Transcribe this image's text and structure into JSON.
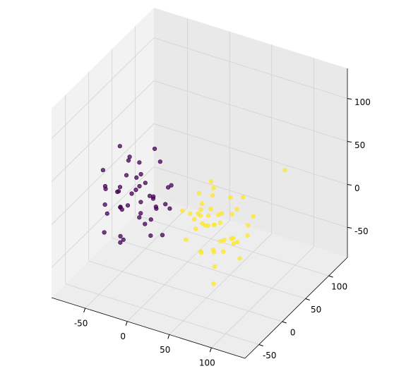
{
  "chart_data": {
    "type": "scatter3d",
    "xlim": [
      -90,
      140
    ],
    "ylim": [
      -80,
      140
    ],
    "zlim": [
      -85,
      135
    ],
    "xticks": [
      -50,
      0,
      50,
      100
    ],
    "yticks": [
      -50,
      0,
      50,
      100
    ],
    "zticks": [
      -50,
      0,
      50,
      100
    ],
    "grid": true,
    "series": [
      {
        "color": "#440154",
        "x": [
          -60,
          -45,
          -30,
          -20,
          -55,
          -38,
          -25,
          -10,
          -48,
          -35,
          -15,
          -65,
          -42,
          -28,
          -5,
          -52,
          -33,
          -22,
          -70,
          -40,
          -18,
          -58,
          -36,
          -26,
          -12,
          -50,
          -44,
          -30,
          -8,
          -62,
          -34,
          -24,
          -46,
          -16,
          -56,
          -39,
          -2,
          -68,
          -31,
          -20,
          -53,
          -41,
          -27,
          -14,
          -47
        ],
        "y": [
          10,
          -20,
          30,
          -5,
          -30,
          15,
          -15,
          20,
          5,
          -25,
          35,
          -10,
          25,
          0,
          -20,
          40,
          -35,
          10,
          0,
          -5,
          15,
          30,
          -30,
          5,
          -10,
          20,
          -15,
          45,
          10,
          -20,
          0,
          25,
          -40,
          5,
          10,
          -25,
          15,
          -5,
          35,
          -15,
          0,
          20,
          -30,
          40,
          -10
        ],
        "z": [
          0,
          20,
          -10,
          30,
          -25,
          10,
          40,
          -5,
          25,
          -30,
          5,
          15,
          -15,
          35,
          0,
          20,
          -20,
          -40,
          5,
          50,
          -10,
          30,
          10,
          -25,
          20,
          -5,
          0,
          25,
          -35,
          40,
          15,
          -15,
          5,
          10,
          -20,
          30,
          -5,
          -10,
          45,
          0,
          60,
          -30,
          15,
          5,
          -45
        ]
      },
      {
        "color": "#fde725",
        "x": [
          40,
          55,
          70,
          85,
          50,
          65,
          30,
          75,
          60,
          45,
          90,
          55,
          35,
          80,
          65,
          50,
          70,
          100,
          45,
          60,
          75,
          40,
          85,
          55,
          65,
          30,
          95,
          50,
          70,
          60,
          45,
          80,
          55,
          35,
          75,
          65,
          50,
          110,
          60,
          40,
          85,
          70,
          55,
          25,
          68
        ],
        "y": [
          0,
          -20,
          15,
          -10,
          30,
          -30,
          10,
          20,
          -5,
          25,
          -15,
          5,
          -25,
          35,
          -10,
          15,
          0,
          10,
          -35,
          40,
          -20,
          5,
          25,
          -5,
          -40,
          20,
          -10,
          10,
          30,
          -15,
          0,
          -25,
          45,
          15,
          -30,
          5,
          -10,
          60,
          20,
          -5,
          15,
          -20,
          0,
          10,
          -15
        ],
        "z": [
          10,
          -20,
          30,
          0,
          -35,
          20,
          -5,
          15,
          40,
          -15,
          5,
          -30,
          25,
          -10,
          10,
          35,
          -25,
          20,
          0,
          -40,
          30,
          5,
          -15,
          15,
          -5,
          20,
          -20,
          45,
          -30,
          10,
          0,
          25,
          -10,
          5,
          -45,
          15,
          30,
          50,
          -25,
          -5,
          35,
          -15,
          20,
          0,
          -35
        ]
      }
    ]
  }
}
